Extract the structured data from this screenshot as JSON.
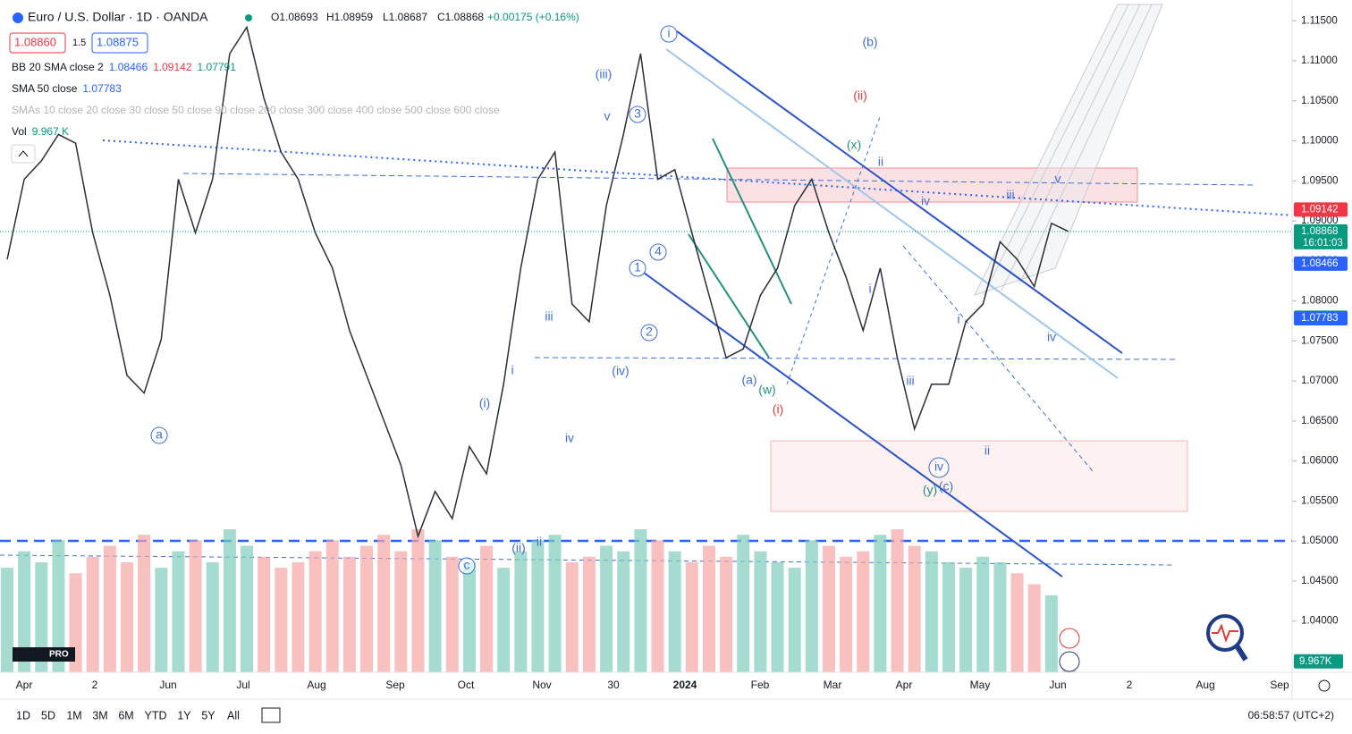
{
  "header": {
    "title": "Euro / U.S. Dollar · 1D · OANDA",
    "ohlc": [
      "O1.08693",
      "H1.08959",
      "L1.08687",
      "C1.08868",
      "+0.00175 (+0.16%)"
    ],
    "bid": "1.08860",
    "spread": "1.5",
    "ask": "1.08875",
    "indicators": [
      {
        "name": "BB 20 SMA close 2",
        "values": [
          "1.08466",
          "1.09142",
          "1.07791"
        ]
      },
      {
        "name": "SMA 50 close",
        "values": [
          "1.07783"
        ]
      },
      {
        "name": "SMAs 10 close 20 close 30 close 50 close 90 close 200 close 300 close 400 close 500 close 600 close",
        "values": []
      },
      {
        "name": "Vol",
        "values": [
          "9.967 K"
        ]
      }
    ]
  },
  "chart_data": {
    "type": "line",
    "color": "#2a2e39",
    "values": [
      1.0852,
      1.0952,
      1.0975,
      1.1008,
      1.0997,
      1.0885,
      1.0807,
      1.0707,
      1.0685,
      1.0752,
      1.0952,
      1.0885,
      1.0952,
      1.1109,
      1.1142,
      1.1053,
      1.0986,
      1.0952,
      1.0885,
      1.0841,
      1.0763,
      1.0707,
      1.0651,
      1.0595,
      1.0506,
      1.0562,
      1.0528,
      1.0618,
      1.0584,
      1.0696,
      1.0841,
      1.0952,
      1.0986,
      1.0796,
      1.0774,
      1.0919,
      1.1008,
      1.1109,
      1.0952,
      1.0964,
      1.0885,
      1.0807,
      1.0729,
      1.074,
      1.0807,
      1.0841,
      1.0919,
      1.0952,
      1.0885,
      1.083,
      1.0763,
      1.0841,
      1.0729,
      1.064,
      1.0696,
      1.0696,
      1.0774,
      1.0796,
      1.0874,
      1.0852,
      1.0818,
      1.0897,
      1.08868
    ],
    "volume": [
      95,
      110,
      100,
      120,
      90,
      105,
      115,
      100,
      125,
      95,
      110,
      120,
      100,
      130,
      115,
      105,
      95,
      100,
      110,
      120,
      105,
      115,
      125,
      110,
      130,
      120,
      105,
      100,
      115,
      95,
      110,
      120,
      125,
      100,
      105,
      115,
      110,
      130,
      120,
      110,
      100,
      115,
      105,
      125,
      110,
      100,
      95,
      120,
      115,
      105,
      110,
      125,
      130,
      115,
      110,
      100,
      95,
      105,
      100,
      90,
      80,
      70,
      9.967
    ],
    "vlim": [
      0,
      130
    ],
    "volume_label": {
      "value": 9.967,
      "label": "9.967K"
    },
    "ylim": [
      1.0336,
      1.1176
    ],
    "yticks": [
      {
        "value": 1.115,
        "label": "1.11500"
      },
      {
        "value": 1.11,
        "label": "1.11000"
      },
      {
        "value": 1.105,
        "label": "1.10500"
      },
      {
        "value": 1.1,
        "label": "1.10000"
      },
      {
        "value": 1.095,
        "label": "1.09500"
      },
      {
        "value": 1.09,
        "label": "1.09000"
      },
      {
        "value": 1.085,
        "label": "1.08500"
      },
      {
        "value": 1.08,
        "label": "1.08000"
      },
      {
        "value": 1.075,
        "label": "1.07500"
      },
      {
        "value": 1.07,
        "label": "1.07000"
      },
      {
        "value": 1.065,
        "label": "1.06500"
      },
      {
        "value": 1.06,
        "label": "1.06000"
      },
      {
        "value": 1.055,
        "label": "1.05500"
      },
      {
        "value": 1.05,
        "label": "1.05000"
      },
      {
        "value": 1.045,
        "label": "1.04500"
      },
      {
        "value": 1.04,
        "label": "1.04000"
      }
    ],
    "price_labels": [
      {
        "value": 1.09142,
        "color": "#f23645"
      },
      {
        "value": 1.08868,
        "color": "#089981"
      },
      {
        "value": 1.08466,
        "color": "#2962ff"
      },
      {
        "value": 1.07791,
        "color": "#089981"
      },
      {
        "value": 1.07783,
        "color": "#2962ff"
      }
    ],
    "countdown": "16:01:03",
    "time_labels": [
      "Apr",
      "2",
      "Jun",
      "Jul",
      "Aug",
      "Sep",
      "Oct",
      "Nov",
      "30",
      "2024",
      "Feb",
      "Mar",
      "Apr",
      "May",
      "Jun",
      "2",
      "Aug",
      "Sep"
    ],
    "annotations": [
      {
        "text": "a",
        "color": "#3d6fd8",
        "circled": true
      },
      {
        "text": "c",
        "color": "#3d6fd8",
        "circled": true
      },
      {
        "text": "i",
        "color": "#3d6fd8",
        "circled": true
      },
      {
        "text": "1",
        "color": "#3d6fd8",
        "circled": true
      },
      {
        "text": "2",
        "color": "#3d6fd8",
        "circled": true
      },
      {
        "text": "3",
        "color": "#3d6fd8",
        "circled": true
      },
      {
        "text": "4",
        "color": "#3d6fd8",
        "circled": true
      },
      {
        "text": "iv",
        "color": "#3d6fd8",
        "circled": true
      },
      {
        "text": "(b)",
        "color": "#3d6fd8"
      },
      {
        "text": "(ii)",
        "color": "#e53935"
      },
      {
        "text": "(iii)",
        "color": "#3d6fd8"
      },
      {
        "text": "v",
        "color": "#3d6fd8"
      },
      {
        "text": "(x)",
        "color": "#22907f"
      },
      {
        "text": "ii",
        "color": "#3d6fd8"
      },
      {
        "text": "iii",
        "color": "#3d6fd8"
      },
      {
        "text": "v",
        "color": "#3d6fd8"
      },
      {
        "text": "iv",
        "color": "#3d6fd8"
      },
      {
        "text": "i",
        "color": "#3d6fd8"
      },
      {
        "text": "i",
        "color": "#3d6fd8"
      },
      {
        "text": "iv",
        "color": "#3d6fd8"
      },
      {
        "text": "iii",
        "color": "#3d6fd8"
      },
      {
        "text": "ii",
        "color": "#3d6fd8"
      },
      {
        "text": "(y)",
        "color": "#22907f"
      },
      {
        "text": "(c)",
        "color": "#3d6fd8"
      },
      {
        "text": "(a)",
        "color": "#3d6fd8"
      },
      {
        "text": "(w)",
        "color": "#22907f"
      },
      {
        "text": "(i)",
        "color": "#e53935"
      },
      {
        "text": "(iv)",
        "color": "#3d6fd8"
      },
      {
        "text": "iii",
        "color": "#3d6fd8"
      },
      {
        "text": "i",
        "color": "#3d6fd8"
      },
      {
        "text": "(i)",
        "color": "#3d6fd8"
      },
      {
        "text": "iv",
        "color": "#3d6fd8"
      },
      {
        "text": "(ii)",
        "color": "#3d6fd8"
      },
      {
        "text": "ii",
        "color": "#3d6fd8"
      }
    ]
  },
  "toolbar": {
    "ranges": [
      "1D",
      "5D",
      "1M",
      "3M",
      "6M",
      "YTD",
      "1Y",
      "5Y",
      "All"
    ],
    "clock": "06:58:57 (UTC+2)"
  }
}
